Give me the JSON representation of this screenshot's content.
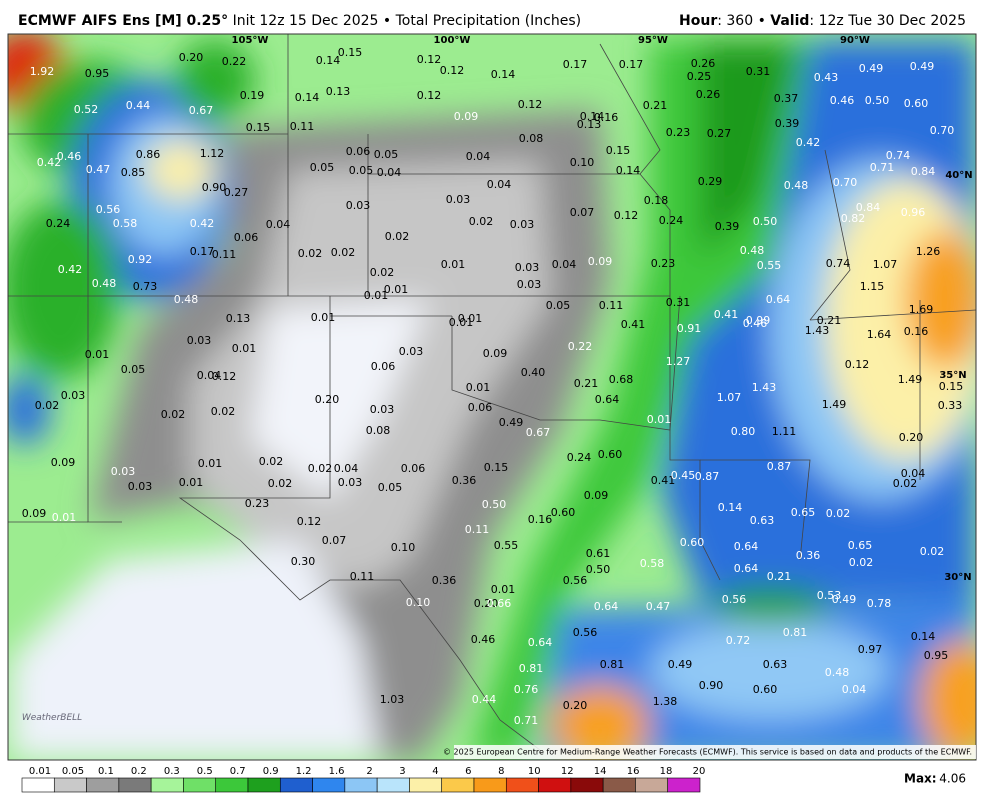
{
  "header": {
    "model": "ECMWF AIFS Ens [M] 0.25°",
    "info": "Init 12z 15 Dec 2025 • Total Precipitation (Inches)",
    "hour_label": "Hour",
    "hour_value": ": 360 • ",
    "valid_label": "Valid",
    "valid_value": ": 12z Tue 30 Dec 2025"
  },
  "map": {
    "grid_labels": [
      "105°W",
      "100°W",
      "95°W",
      "90°W",
      "40°N",
      "35°N",
      "30°N"
    ],
    "values": [
      "1.92",
      "0.95",
      "0.20",
      "0.22",
      "0.14",
      "0.15",
      "0.12",
      "0.12",
      "0.14",
      "0.17",
      "0.17",
      "0.26",
      "0.25",
      "0.31",
      "0.43",
      "0.49",
      "0.49",
      "0.52",
      "0.44",
      "0.67",
      "0.19",
      "0.14",
      "0.13",
      "0.12",
      "0.12",
      "0.21",
      "0.26",
      "0.37",
      "0.46",
      "0.50",
      "0.60",
      "0.15",
      "0.11",
      "0.09",
      "0.14",
      "0.16",
      "0.13",
      "0.08",
      "0.23",
      "0.27",
      "0.39",
      "0.70",
      "0.42",
      "0.46",
      "0.42",
      "0.86",
      "1.12",
      "0.06",
      "0.05",
      "0.04",
      "0.10",
      "0.15",
      "0.74",
      "0.47",
      "0.85",
      "0.05",
      "0.05",
      "0.04",
      "0.14",
      "0.71",
      "0.84",
      "0.90",
      "0.27",
      "0.04",
      "0.29",
      "0.48",
      "0.70",
      "0.18",
      "0.56",
      "0.03",
      "0.03",
      "0.07",
      "0.12",
      "0.84",
      "0.96",
      "0.24",
      "0.58",
      "0.42",
      "0.04",
      "0.02",
      "0.03",
      "0.24",
      "0.39",
      "0.50",
      "0.82",
      "0.06",
      "0.02",
      "0.92",
      "0.17",
      "0.11",
      "0.02",
      "0.02",
      "0.48",
      "1.26",
      "0.42",
      "0.01",
      "0.03",
      "0.04",
      "0.09",
      "0.23",
      "0.55",
      "0.74",
      "1.07",
      "0.02",
      "0.48",
      "0.73",
      "0.03",
      "0.01",
      "0.01",
      "1.15",
      "0.48",
      "0.64",
      "0.05",
      "0.11",
      "0.31",
      "1.69",
      "0.13",
      "0.01",
      "0.01",
      "0.01",
      "0.41",
      "0.46",
      "0.99",
      "0.21",
      "0.41",
      "0.91",
      "1.43",
      "1.64",
      "0.16",
      "0.03",
      "0.01",
      "0.03",
      "0.09",
      "0.22",
      "0.01",
      "0.06",
      "0.40",
      "1.27",
      "0.12",
      "0.05",
      "0.04",
      "0.12",
      "0.21",
      "0.68",
      "1.43",
      "1.49",
      "0.15",
      "0.03",
      "0.01",
      "0.20",
      "0.64",
      "1.07",
      "1.49",
      "0.33",
      "0.02",
      "0.02",
      "0.02",
      "0.03",
      "0.06",
      "0.49",
      "0.01",
      "0.08",
      "0.67",
      "0.80",
      "1.11",
      "0.20",
      "0.09",
      "0.03",
      "0.01",
      "0.02",
      "0.02",
      "0.04",
      "0.06",
      "0.15",
      "0.24",
      "0.60",
      "0.87",
      "0.04",
      "0.03",
      "0.01",
      "0.02",
      "0.03",
      "0.05",
      "0.36",
      "0.41",
      "0.45",
      "0.87",
      "0.02",
      "0.23",
      "0.09",
      "0.50",
      "0.14",
      "0.09",
      "0.01",
      "0.12",
      "0.16",
      "0.60",
      "0.63",
      "0.65",
      "0.02",
      "0.07",
      "0.10",
      "0.11",
      "0.55",
      "0.60",
      "0.64",
      "0.65",
      "0.02",
      "0.30",
      "0.61",
      "0.36",
      "0.50",
      "0.58",
      "0.64",
      "0.02",
      "0.11",
      "0.36",
      "0.56",
      "0.21",
      "0.01",
      "0.10",
      "0.20",
      "0.66",
      "0.64",
      "0.47",
      "0.56",
      "0.53",
      "0.49",
      "0.78",
      "0.56",
      "0.81",
      "0.14",
      "0.46",
      "0.64",
      "0.72",
      "0.97",
      "0.95",
      "0.81",
      "0.49",
      "0.81",
      "0.63",
      "0.48",
      "0.76",
      "0.90",
      "0.60",
      "0.04",
      "1.03",
      "1.38",
      "0.20",
      "0.44",
      "0.71"
    ],
    "logo": "WeatherBELL",
    "credit": "© 2025 European Centre for Medium-Range Weather Forecasts (ECMWF). This service is based on data and products of the ECMWF."
  },
  "legend": {
    "labels": [
      "0.01",
      "0.05",
      "0.1",
      "0.2",
      "0.3",
      "0.5",
      "0.7",
      "0.9",
      "1.2",
      "1.6",
      "2",
      "3",
      "4",
      "6",
      "8",
      "10",
      "12",
      "14",
      "16",
      "18",
      "20"
    ],
    "colors": [
      "#ffffff",
      "#c9c9c9",
      "#9e9e9e",
      "#7a7a7a",
      "#a6f49a",
      "#6fe067",
      "#3cc83a",
      "#1ea01e",
      "#1f5fcf",
      "#2f86ee",
      "#8cc6f5",
      "#b9e4fb",
      "#fcf0a8",
      "#fbc94a",
      "#f89a1a",
      "#f0501a",
      "#d01010",
      "#8a0a0a",
      "#8a5a48",
      "#c8a898",
      "#cc22cc"
    ]
  },
  "max": {
    "label": "Max:",
    "value": "4.06"
  }
}
